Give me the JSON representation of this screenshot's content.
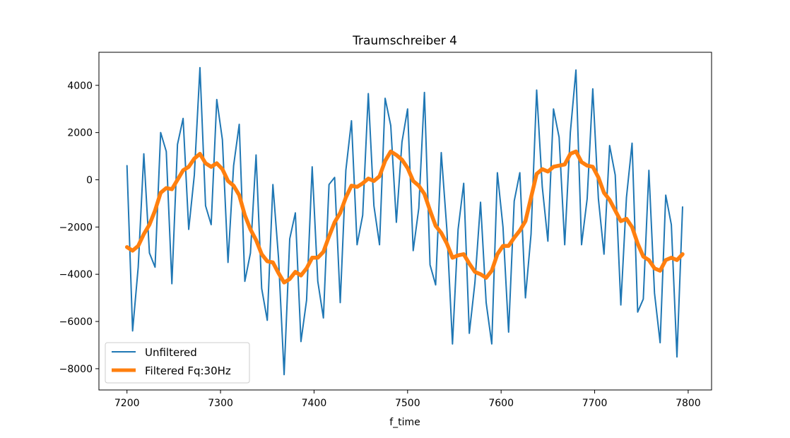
{
  "chart_data": {
    "type": "line",
    "title": "Traumschreiber 4",
    "xlabel": "f_time",
    "ylabel": "",
    "xlim": [
      7170,
      7825
    ],
    "ylim": [
      -8900,
      5400
    ],
    "xticks": [
      7200,
      7300,
      7400,
      7500,
      7600,
      7700,
      7800
    ],
    "yticks": [
      -8000,
      -6000,
      -4000,
      -2000,
      0,
      2000,
      4000
    ],
    "xtick_labels": [
      "7200",
      "7300",
      "7400",
      "7500",
      "7600",
      "7700",
      "7800"
    ],
    "ytick_labels": [
      "−8000",
      "−6000",
      "−4000",
      "−2000",
      "0",
      "2000",
      "4000"
    ],
    "grid": false,
    "legend_position": "lower-left",
    "series": [
      {
        "name": "Unfiltered",
        "color": "#1f77b4",
        "x": [
          7200,
          7206,
          7212,
          7218,
          7224,
          7230,
          7236,
          7242,
          7248,
          7254,
          7260,
          7266,
          7272,
          7278,
          7284,
          7290,
          7296,
          7302,
          7308,
          7314,
          7320,
          7326,
          7332,
          7338,
          7344,
          7350,
          7356,
          7362,
          7368,
          7374,
          7380,
          7386,
          7392,
          7398,
          7404,
          7410,
          7416,
          7422,
          7428,
          7434,
          7440,
          7446,
          7452,
          7458,
          7464,
          7470,
          7476,
          7482,
          7488,
          7494,
          7500,
          7506,
          7512,
          7518,
          7524,
          7530,
          7536,
          7542,
          7548,
          7554,
          7560,
          7566,
          7572,
          7578,
          7584,
          7590,
          7596,
          7602,
          7608,
          7614,
          7620,
          7626,
          7632,
          7638,
          7644,
          7650,
          7656,
          7662,
          7668,
          7674,
          7680,
          7686,
          7692,
          7698,
          7704,
          7710,
          7716,
          7722,
          7728,
          7734,
          7740,
          7746,
          7752,
          7758,
          7764,
          7770,
          7776,
          7782,
          7788,
          7794
        ],
        "values": [
          600,
          -6400,
          -3700,
          1100,
          -3100,
          -3700,
          2000,
          1200,
          -4400,
          1500,
          2600,
          -2100,
          200,
          4750,
          -1100,
          -1900,
          3400,
          1700,
          -3500,
          600,
          2350,
          -4300,
          -3100,
          1050,
          -4600,
          -5950,
          -200,
          -3300,
          -8250,
          -2500,
          -1400,
          -6850,
          -5100,
          550,
          -4300,
          -5850,
          -200,
          100,
          -5200,
          400,
          2500,
          -2750,
          -1500,
          3650,
          -1100,
          -2750,
          3450,
          2300,
          -1800,
          1600,
          3000,
          -3000,
          -1200,
          3700,
          -3600,
          -4450,
          1150,
          -2100,
          -6950,
          -2100,
          -150,
          -6500,
          -4350,
          -950,
          -5200,
          -6950,
          300,
          -2000,
          -6450,
          -900,
          300,
          -5000,
          -2300,
          3800,
          -300,
          -2600,
          3000,
          1800,
          -2750,
          2000,
          4650,
          -2750,
          -800,
          3850,
          -800,
          -3150,
          1450,
          200,
          -5300,
          -750,
          1550,
          -5600,
          -5050,
          400,
          -4800,
          -6900,
          -650,
          -1900,
          -7500,
          -1150
        ]
      },
      {
        "name": "Filtered Fq:30Hz",
        "color": "#ff7f0e",
        "x": [
          7200,
          7206,
          7212,
          7218,
          7224,
          7230,
          7236,
          7242,
          7248,
          7254,
          7260,
          7266,
          7272,
          7278,
          7284,
          7290,
          7296,
          7302,
          7308,
          7314,
          7320,
          7326,
          7332,
          7338,
          7344,
          7350,
          7356,
          7362,
          7368,
          7374,
          7380,
          7386,
          7392,
          7398,
          7404,
          7410,
          7416,
          7422,
          7428,
          7434,
          7440,
          7446,
          7452,
          7458,
          7464,
          7470,
          7476,
          7482,
          7488,
          7494,
          7500,
          7506,
          7512,
          7518,
          7524,
          7530,
          7536,
          7542,
          7548,
          7554,
          7560,
          7566,
          7572,
          7578,
          7584,
          7590,
          7596,
          7602,
          7608,
          7614,
          7620,
          7626,
          7632,
          7638,
          7644,
          7650,
          7656,
          7662,
          7668,
          7674,
          7680,
          7686,
          7692,
          7698,
          7704,
          7710,
          7716,
          7722,
          7728,
          7734,
          7740,
          7746,
          7752,
          7758,
          7764,
          7770,
          7776,
          7782,
          7788,
          7794
        ],
        "values": [
          -2850,
          -3000,
          -2800,
          -2300,
          -1900,
          -1300,
          -550,
          -350,
          -400,
          0,
          400,
          550,
          900,
          1100,
          700,
          550,
          700,
          450,
          -50,
          -250,
          -650,
          -1500,
          -2100,
          -2550,
          -3150,
          -3450,
          -3500,
          -3950,
          -4350,
          -4200,
          -3900,
          -4050,
          -3750,
          -3300,
          -3300,
          -3050,
          -2400,
          -1800,
          -1400,
          -750,
          -250,
          -300,
          -150,
          50,
          -50,
          150,
          800,
          1200,
          1050,
          850,
          500,
          -50,
          -250,
          -600,
          -1300,
          -1950,
          -2250,
          -2700,
          -3300,
          -3200,
          -3150,
          -3550,
          -3900,
          -4000,
          -4150,
          -3850,
          -3150,
          -2800,
          -2800,
          -2450,
          -2150,
          -1750,
          -750,
          250,
          450,
          350,
          550,
          600,
          650,
          1100,
          1200,
          750,
          600,
          550,
          100,
          -550,
          -850,
          -1300,
          -1750,
          -1650,
          -2000,
          -2700,
          -3250,
          -3400,
          -3750,
          -3850,
          -3400,
          -3300,
          -3400,
          -3150
        ]
      }
    ]
  }
}
